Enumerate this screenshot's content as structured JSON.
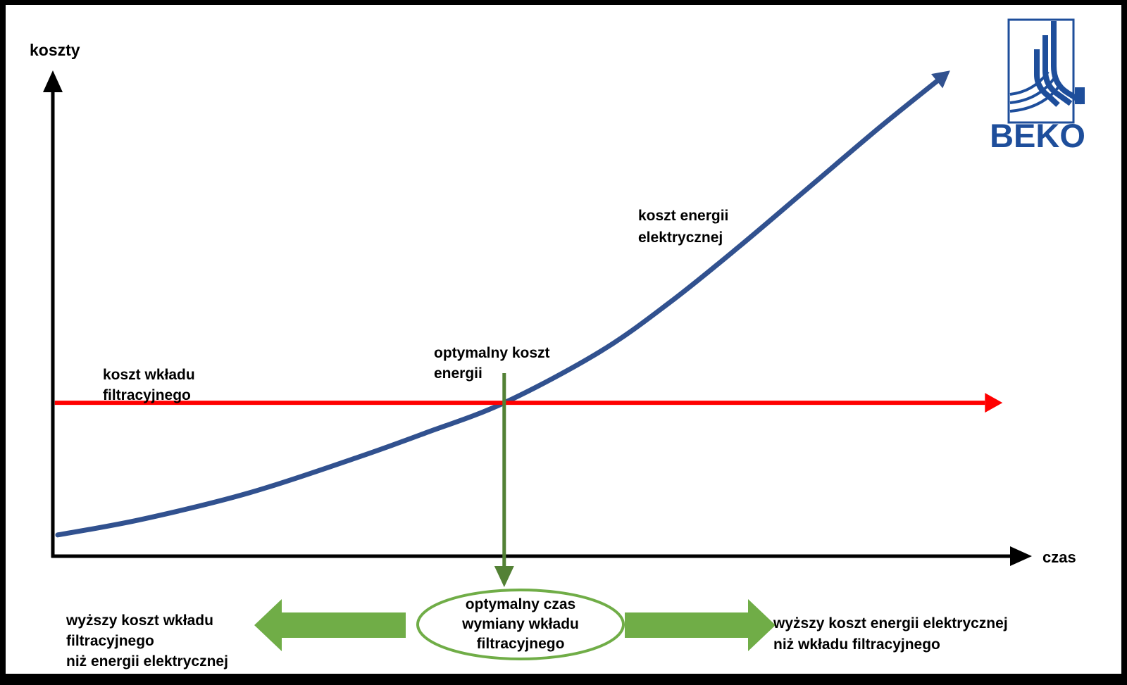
{
  "page": {
    "frame_color": "#000000",
    "panel_color": "#FFFFFF"
  },
  "colors": {
    "axis": "#000000",
    "energy_blue": "#31518F",
    "filter_red": "#FF0000",
    "optimal_dark_green": "#538135",
    "accent_green": "#70AD47",
    "logo_blue": "#1E4E9B",
    "text": "#000000"
  },
  "logo": {
    "brand": "BEKO",
    "color": "#1E4E9B"
  },
  "axes": {
    "y_label": "koszty",
    "x_label": "czas"
  },
  "labels": {
    "energy_curve": "koszt energii\nelektrycznej",
    "filter_line": "koszt wkładu\nfiltracyjnego",
    "optimal_cost": "optymalny koszt\nenergii",
    "ellipse": "optymalny czas\nwymiany wkładu\nfiltracyjnego",
    "bottom_left": "wyższy koszt wkładu\nfiltracyjnego\nniż energii elektrycznej",
    "bottom_right": "wyższy koszt energii elektrycznej\nniż wkładu filtracyjnego"
  },
  "chart_data": {
    "type": "line",
    "title": "",
    "xlabel": "czas",
    "ylabel": "koszty",
    "grid": false,
    "ticks": "none",
    "axis_ranges_normalized": {
      "x": [
        0,
        1
      ],
      "y": [
        0,
        1
      ]
    },
    "series": [
      {
        "name": "koszt wkładu filtracyjnego",
        "color": "#FF0000",
        "shape": "constant-horizontal-line",
        "y": 0.318,
        "x_start": 0.002,
        "x_end": 0.97
      },
      {
        "name": "koszt energii elektrycznej",
        "color": "#31518F",
        "shape": "increasing-exponential-curve",
        "points": [
          [
            0.005,
            0.044
          ],
          [
            0.09,
            0.076
          ],
          [
            0.2,
            0.131
          ],
          [
            0.31,
            0.204
          ],
          [
            0.38,
            0.255
          ],
          [
            0.461,
            0.318
          ],
          [
            0.558,
            0.423
          ],
          [
            0.63,
            0.526
          ],
          [
            0.701,
            0.642
          ],
          [
            0.773,
            0.766
          ],
          [
            0.845,
            0.89
          ],
          [
            0.903,
            0.985
          ]
        ]
      }
    ],
    "annotations": [
      {
        "name": "intersection-optimal-point",
        "x": 0.461,
        "y": 0.318,
        "label_top": "optymalny koszt energii",
        "label_bottom": "optymalny czas wymiany wkładu filtracyjnego",
        "marker": "green-vertical-arrow-down"
      },
      {
        "name": "region-left-of-optimum",
        "label": "wyższy koszt wkładu filtracyjnego niż energii elektrycznej"
      },
      {
        "name": "region-right-of-optimum",
        "label": "wyższy koszt energii elektrycznej niż wkładu filtracyjnego"
      }
    ],
    "legend": "none"
  }
}
